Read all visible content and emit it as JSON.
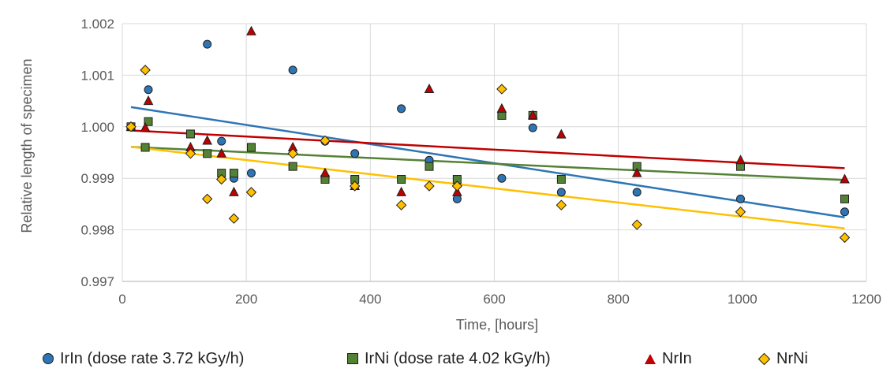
{
  "chart_data": {
    "type": "scatter",
    "title": "",
    "xlabel": "Time, [hours]",
    "ylabel": "Relative length of specimen",
    "xlim": [
      0,
      1200
    ],
    "ylim": [
      0.997,
      1.002
    ],
    "x_ticks": [
      "0",
      "200",
      "400",
      "600",
      "800",
      "1000",
      "1200"
    ],
    "y_ticks": [
      "0.997",
      "0.998",
      "0.999",
      "1.000",
      "1.001",
      "1.002"
    ],
    "grid": true,
    "legend_position": "bottom",
    "trendlines": "linear",
    "series": [
      {
        "name": "IrIn (dose rate 3.72 kGy/h)",
        "marker": "circle",
        "color": "#2e75b6",
        "trend_color": "#2e75b6",
        "points": [
          [
            14,
            1.0
          ],
          [
            42,
            1.00072
          ],
          [
            137,
            1.0016
          ],
          [
            160,
            0.99972
          ],
          [
            180,
            0.999
          ],
          [
            208,
            0.9991
          ],
          [
            275,
            1.0011
          ],
          [
            327,
            0.99972
          ],
          [
            375,
            0.99948
          ],
          [
            450,
            1.00035
          ],
          [
            495,
            0.99935
          ],
          [
            540,
            0.9986
          ],
          [
            612,
            0.999
          ],
          [
            662,
            0.99998
          ],
          [
            708,
            0.99873
          ],
          [
            830,
            0.99873
          ],
          [
            997,
            0.9986
          ],
          [
            1165,
            0.99835
          ]
        ]
      },
      {
        "name": "IrNi (dose rate 4.02 kGy/h)",
        "marker": "square",
        "color": "#548235",
        "trend_color": "#548235",
        "points": [
          [
            14,
            1.0
          ],
          [
            37,
            0.9996
          ],
          [
            42,
            1.0001
          ],
          [
            110,
            0.99986
          ],
          [
            137,
            0.99948
          ],
          [
            160,
            0.9991
          ],
          [
            180,
            0.9991
          ],
          [
            208,
            0.9996
          ],
          [
            275,
            0.99923
          ],
          [
            327,
            0.99898
          ],
          [
            375,
            0.99898
          ],
          [
            450,
            0.99898
          ],
          [
            495,
            0.99923
          ],
          [
            540,
            0.99898
          ],
          [
            612,
            1.00022
          ],
          [
            662,
            1.00022
          ],
          [
            708,
            0.99898
          ],
          [
            830,
            0.99923
          ],
          [
            997,
            0.99923
          ],
          [
            1165,
            0.9986
          ]
        ]
      },
      {
        "name": "NrIn",
        "marker": "triangle",
        "color": "#c00000",
        "trend_color": "#c00000",
        "points": [
          [
            14,
            1.0
          ],
          [
            37,
            0.99998
          ],
          [
            42,
            1.0005
          ],
          [
            110,
            0.9996
          ],
          [
            137,
            0.99973
          ],
          [
            160,
            0.99948
          ],
          [
            180,
            0.99873
          ],
          [
            208,
            1.00185
          ],
          [
            275,
            0.9996
          ],
          [
            327,
            0.9991
          ],
          [
            375,
            0.99885
          ],
          [
            450,
            0.99873
          ],
          [
            495,
            1.00073
          ],
          [
            540,
            0.99873
          ],
          [
            612,
            1.00035
          ],
          [
            662,
            1.00022
          ],
          [
            708,
            0.99985
          ],
          [
            830,
            0.9991
          ],
          [
            997,
            0.99935
          ],
          [
            1165,
            0.99898
          ]
        ]
      },
      {
        "name": "NrNi",
        "marker": "diamond",
        "color": "#ffc000",
        "trend_color": "#ffc000",
        "points": [
          [
            14,
            1.0
          ],
          [
            37,
            1.0011
          ],
          [
            110,
            0.99948
          ],
          [
            137,
            0.9986
          ],
          [
            160,
            0.99898
          ],
          [
            180,
            0.99822
          ],
          [
            208,
            0.99873
          ],
          [
            275,
            0.99948
          ],
          [
            327,
            0.99973
          ],
          [
            375,
            0.99885
          ],
          [
            450,
            0.99848
          ],
          [
            495,
            0.99885
          ],
          [
            540,
            0.99885
          ],
          [
            612,
            1.00073
          ],
          [
            708,
            0.99848
          ],
          [
            830,
            0.9981
          ],
          [
            997,
            0.99835
          ],
          [
            1165,
            0.99785
          ]
        ]
      }
    ]
  },
  "colors": {
    "grid": "#d9d9d9",
    "axis": "#bfbfbf",
    "text": "#595959",
    "marker_outline": "#1f1f1f"
  }
}
